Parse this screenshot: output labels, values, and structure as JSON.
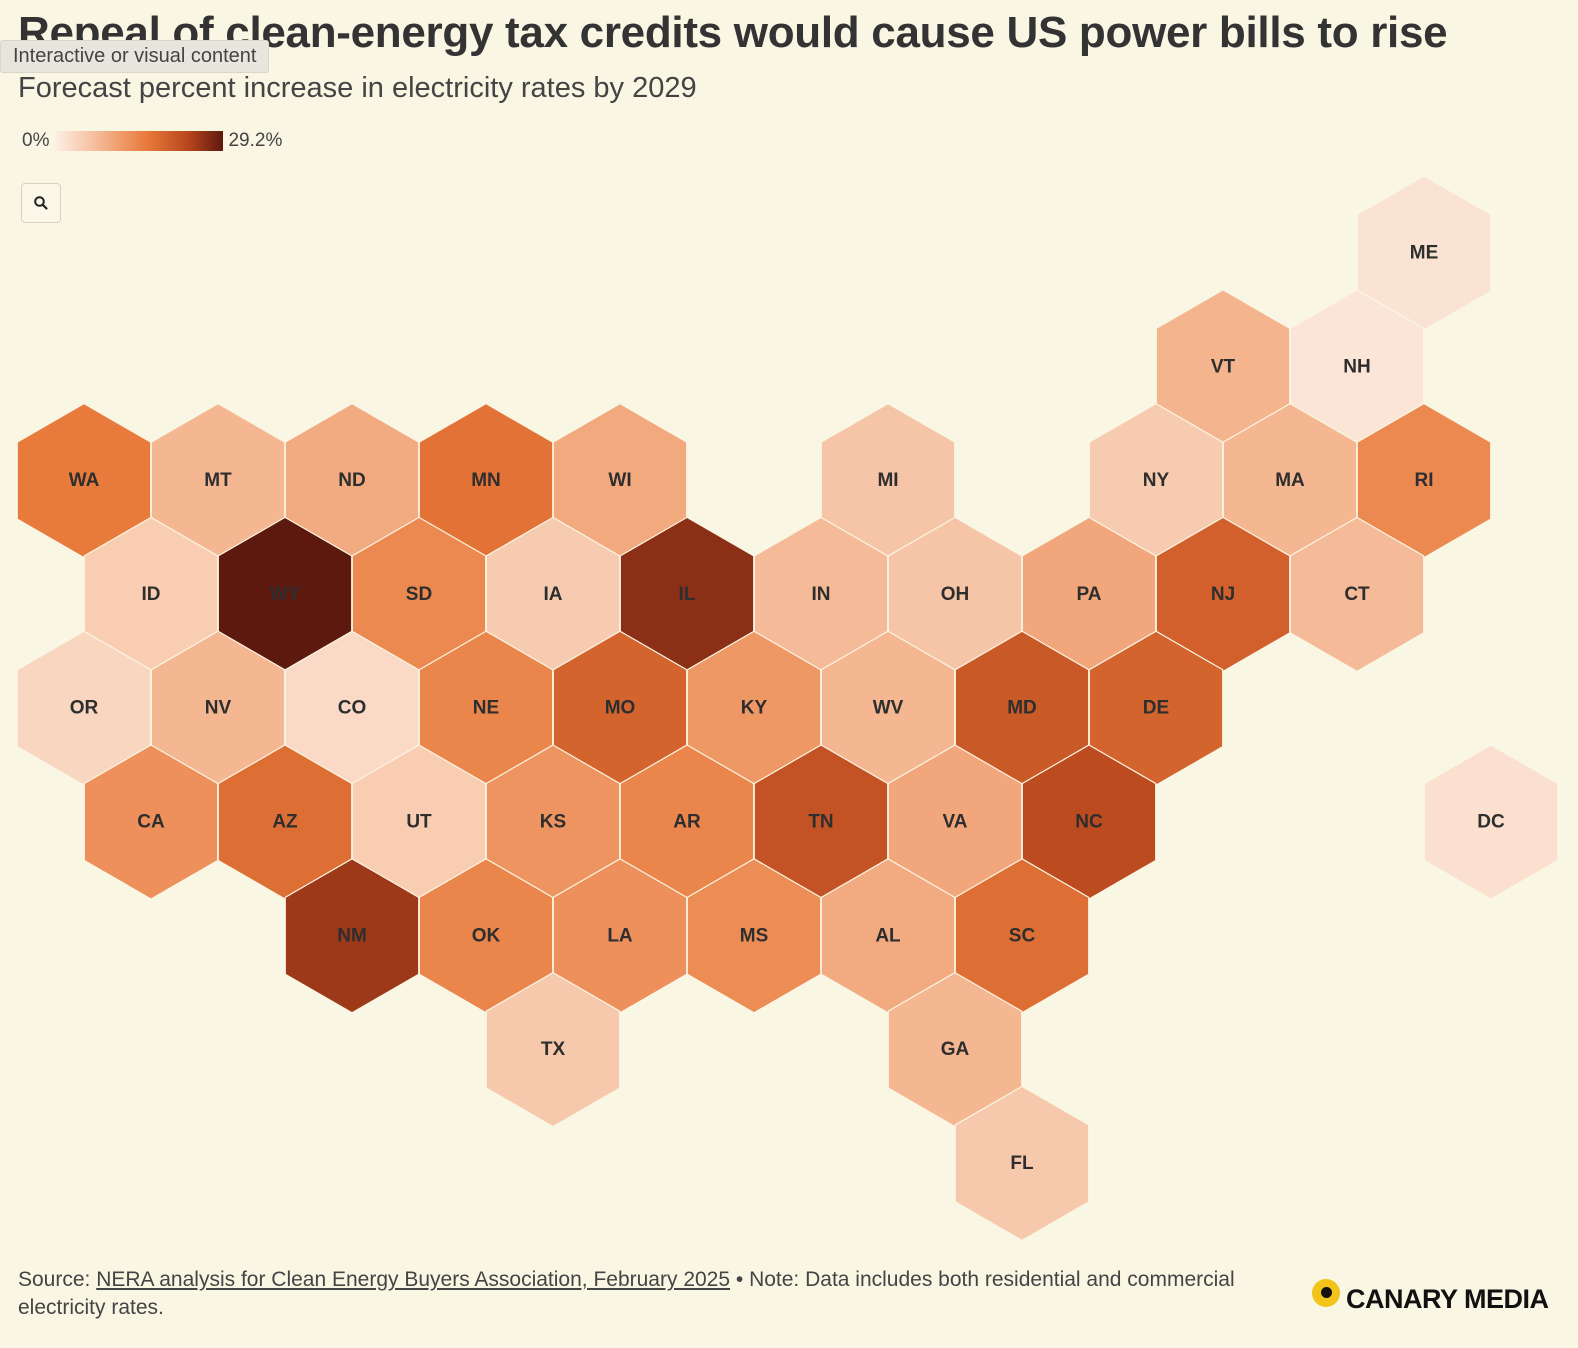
{
  "header": {
    "title": "Repeal of clean-energy tax credits would cause US power bills to rise",
    "overlay_badge": "Interactive or visual content",
    "subtitle": "Forecast percent increase in electricity rates by 2029"
  },
  "legend": {
    "min_label": "0%",
    "max_label": "29.2%",
    "min_value": 0,
    "max_value": 29.2
  },
  "toolbar": {
    "zoom_icon": "search-icon"
  },
  "chart_data": {
    "type": "hex-tile-map",
    "metric": "percent increase in electricity rates by 2029",
    "color_scale": {
      "domain": [
        0,
        29.2
      ],
      "stops": [
        "#fdf0e6",
        "#f3b088",
        "#e8793a",
        "#b6441c",
        "#5e190f"
      ]
    },
    "states": [
      {
        "code": "ME",
        "row": 0,
        "col": 10,
        "value": 1.5
      },
      {
        "code": "VT",
        "row": 1,
        "col": 8,
        "value": 6.8
      },
      {
        "code": "NH",
        "row": 1,
        "col": 9,
        "value": 1.2
      },
      {
        "code": "WA",
        "row": 2,
        "col": 0,
        "value": 14.5
      },
      {
        "code": "MT",
        "row": 2,
        "col": 1,
        "value": 6.5
      },
      {
        "code": "ND",
        "row": 2,
        "col": 2,
        "value": 8.0
      },
      {
        "code": "MN",
        "row": 2,
        "col": 3,
        "value": 15.5
      },
      {
        "code": "WI",
        "row": 2,
        "col": 4,
        "value": 8.2
      },
      {
        "code": "MI",
        "row": 2,
        "col": 6,
        "value": 5.0
      },
      {
        "code": "NY",
        "row": 2,
        "col": 8,
        "value": 4.2
      },
      {
        "code": "MA",
        "row": 2,
        "col": 9,
        "value": 6.5
      },
      {
        "code": "RI",
        "row": 2,
        "col": 10,
        "value": 12.5
      },
      {
        "code": "ID",
        "row": 3,
        "col": 0,
        "value": 4.0
      },
      {
        "code": "WY",
        "row": 3,
        "col": 1,
        "value": 29.2
      },
      {
        "code": "SD",
        "row": 3,
        "col": 2,
        "value": 12.5
      },
      {
        "code": "IA",
        "row": 3,
        "col": 3,
        "value": 4.2
      },
      {
        "code": "IL",
        "row": 3,
        "col": 4,
        "value": 25.5
      },
      {
        "code": "IN",
        "row": 3,
        "col": 5,
        "value": 6.0
      },
      {
        "code": "OH",
        "row": 3,
        "col": 6,
        "value": 5.0
      },
      {
        "code": "PA",
        "row": 3,
        "col": 7,
        "value": 8.5
      },
      {
        "code": "NJ",
        "row": 3,
        "col": 8,
        "value": 18.0
      },
      {
        "code": "CT",
        "row": 3,
        "col": 9,
        "value": 6.0
      },
      {
        "code": "OR",
        "row": 4,
        "col": 0,
        "value": 3.0
      },
      {
        "code": "NV",
        "row": 4,
        "col": 1,
        "value": 6.5
      },
      {
        "code": "CO",
        "row": 4,
        "col": 2,
        "value": 2.5
      },
      {
        "code": "NE",
        "row": 4,
        "col": 3,
        "value": 13.0
      },
      {
        "code": "MO",
        "row": 4,
        "col": 4,
        "value": 17.5
      },
      {
        "code": "KY",
        "row": 4,
        "col": 5,
        "value": 10.5
      },
      {
        "code": "WV",
        "row": 4,
        "col": 6,
        "value": 6.5
      },
      {
        "code": "MD",
        "row": 4,
        "col": 7,
        "value": 19.0
      },
      {
        "code": "DE",
        "row": 4,
        "col": 8,
        "value": 17.5
      },
      {
        "code": "CA",
        "row": 5,
        "col": 0,
        "value": 11.5
      },
      {
        "code": "AZ",
        "row": 5,
        "col": 1,
        "value": 16.0
      },
      {
        "code": "UT",
        "row": 5,
        "col": 2,
        "value": 4.0
      },
      {
        "code": "KS",
        "row": 5,
        "col": 3,
        "value": 11.0
      },
      {
        "code": "AR",
        "row": 5,
        "col": 4,
        "value": 13.0
      },
      {
        "code": "TN",
        "row": 5,
        "col": 5,
        "value": 20.0
      },
      {
        "code": "VA",
        "row": 5,
        "col": 6,
        "value": 8.5
      },
      {
        "code": "NC",
        "row": 5,
        "col": 7,
        "value": 21.0
      },
      {
        "code": "DC",
        "row": 5,
        "col": 10,
        "value": 1.8
      },
      {
        "code": "NM",
        "row": 6,
        "col": 2,
        "value": 24.0
      },
      {
        "code": "OK",
        "row": 6,
        "col": 3,
        "value": 13.0
      },
      {
        "code": "LA",
        "row": 6,
        "col": 4,
        "value": 11.5
      },
      {
        "code": "MS",
        "row": 6,
        "col": 5,
        "value": 12.0
      },
      {
        "code": "AL",
        "row": 6,
        "col": 6,
        "value": 8.0
      },
      {
        "code": "SC",
        "row": 6,
        "col": 7,
        "value": 16.0
      },
      {
        "code": "TX",
        "row": 7,
        "col": 3,
        "value": 4.5
      },
      {
        "code": "GA",
        "row": 7,
        "col": 6,
        "value": 6.5
      },
      {
        "code": "FL",
        "row": 8,
        "col": 7,
        "value": 4.5
      }
    ]
  },
  "footer": {
    "source_prefix": "Source: ",
    "source_link": "NERA analysis for Clean Energy Buyers Association, February 2025",
    "note": " • Note: Data includes both residential and commercial electricity rates."
  },
  "branding": {
    "logo_text": "CANARY MEDIA",
    "logo_dot_color": "#f2c319"
  }
}
